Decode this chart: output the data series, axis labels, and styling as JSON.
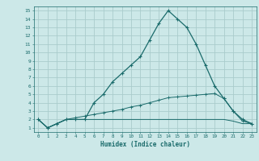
{
  "xlabel": "Humidex (Indice chaleur)",
  "x": [
    0,
    1,
    2,
    3,
    4,
    5,
    6,
    7,
    8,
    9,
    10,
    11,
    12,
    13,
    14,
    15,
    16,
    17,
    18,
    19,
    20,
    21,
    22,
    23
  ],
  "line1": [
    2,
    1,
    1.5,
    2,
    2,
    2,
    4,
    5,
    6.5,
    7.5,
    8.5,
    9.5,
    11.5,
    13.5,
    15,
    14,
    13,
    11,
    8.5,
    6,
    4.5,
    3,
    2,
    1.5
  ],
  "line2": [
    2,
    1,
    1.5,
    2,
    2.2,
    2.4,
    2.6,
    2.8,
    3.0,
    3.2,
    3.5,
    3.7,
    4.0,
    4.3,
    4.6,
    4.7,
    4.8,
    4.9,
    5.0,
    5.1,
    4.5,
    3,
    1.8,
    1.5
  ],
  "line3": [
    2,
    1,
    1.5,
    2,
    2,
    2,
    2,
    2,
    2,
    2,
    2,
    2,
    2,
    2,
    2,
    2,
    2,
    2,
    2,
    2,
    2,
    1.8,
    1.5,
    1.5
  ],
  "bg_color": "#cce8e8",
  "grid_color": "#aacccc",
  "line_color": "#1a6b6b",
  "ylim": [
    0.5,
    15.5
  ],
  "xlim": [
    -0.5,
    23.5
  ],
  "yticks": [
    1,
    2,
    3,
    4,
    5,
    6,
    7,
    8,
    9,
    10,
    11,
    12,
    13,
    14,
    15
  ],
  "xticks": [
    0,
    1,
    2,
    3,
    4,
    5,
    6,
    7,
    8,
    9,
    10,
    11,
    12,
    13,
    14,
    15,
    16,
    17,
    18,
    19,
    20,
    21,
    22,
    23
  ]
}
